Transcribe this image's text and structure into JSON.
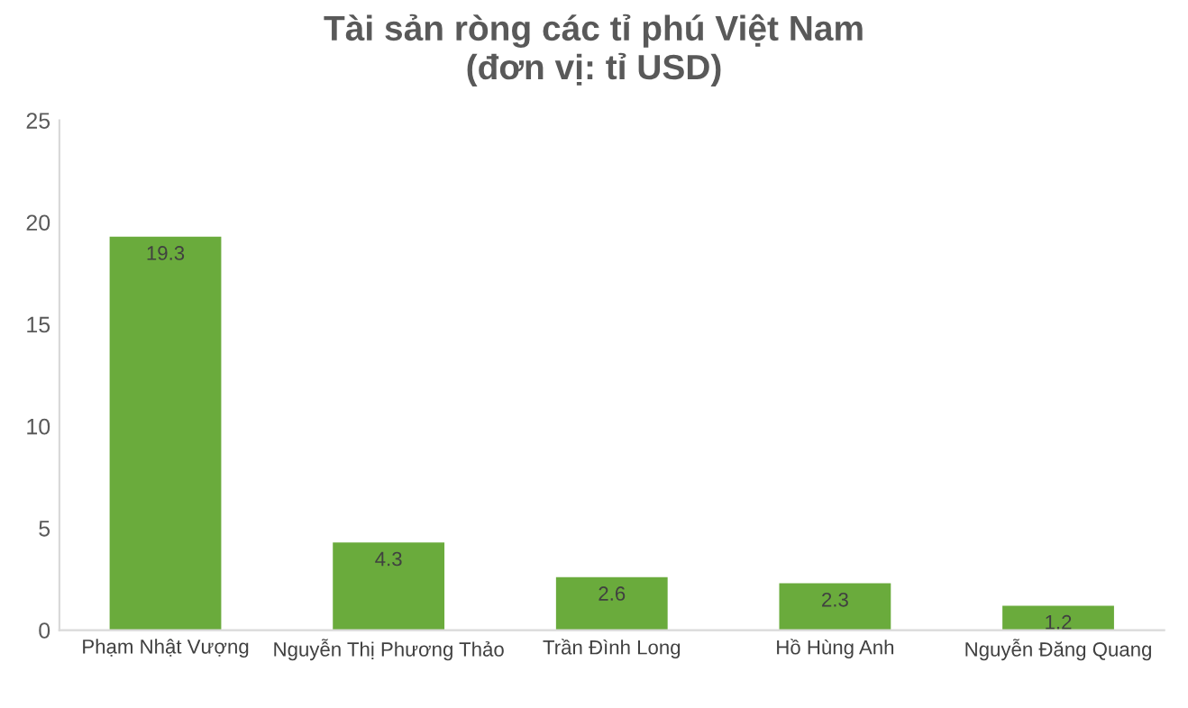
{
  "chart_data": {
    "type": "bar",
    "title": "Tài sản ròng các tỉ phú Việt Nam\n(đơn vị: tỉ USD)",
    "categories": [
      "Phạm Nhật Vượng",
      "Nguyễn Thị Phương Thảo",
      "Trần Đình Long",
      "Hồ Hùng Anh",
      "Nguyễn Đăng Quang"
    ],
    "values": [
      19.3,
      4.3,
      2.6,
      2.3,
      1.2
    ],
    "color": "#6aab3c",
    "ylim": [
      0,
      25
    ],
    "yticks": [
      0,
      5,
      10,
      15,
      20,
      25
    ],
    "grid": false,
    "data_labels": true
  }
}
